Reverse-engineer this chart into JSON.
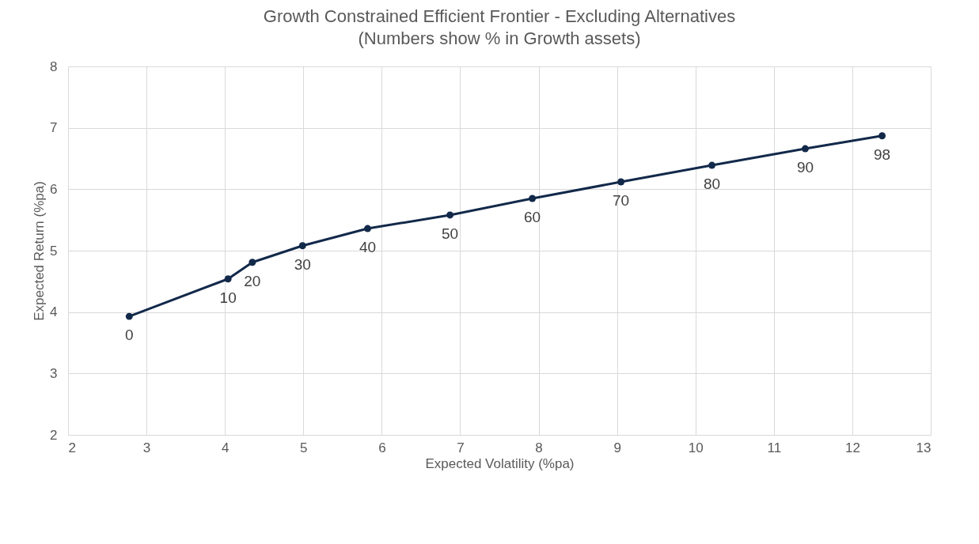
{
  "chart_data": {
    "type": "line",
    "title": "Growth Constrained Efficient Frontier - Excluding Alternatives",
    "subtitle": "(Numbers show % in Growth assets)",
    "xlabel": "Expected Volatility (%pa)",
    "ylabel": "Expected Return (%pa)",
    "x": [
      2.78,
      4.04,
      4.35,
      4.99,
      5.82,
      6.87,
      7.92,
      9.05,
      10.21,
      11.4,
      12.38
    ],
    "values": [
      3.93,
      4.54,
      4.81,
      5.08,
      5.36,
      5.58,
      5.85,
      6.12,
      6.39,
      6.66,
      6.87
    ],
    "color": "#12294a",
    "marker": "circle",
    "line_style": "solid",
    "grid": true,
    "xlim": [
      2,
      13
    ],
    "xticks": [
      2,
      3,
      4,
      5,
      6,
      7,
      8,
      9,
      10,
      11,
      12,
      13
    ],
    "ylim": [
      2,
      8
    ],
    "yticks": [
      2,
      3,
      4,
      5,
      6,
      7,
      8
    ],
    "annotations": [
      {
        "text": "0",
        "x": 2.78,
        "y": 3.93
      },
      {
        "text": "10",
        "x": 4.04,
        "y": 4.54
      },
      {
        "text": "20",
        "x": 4.35,
        "y": 4.81
      },
      {
        "text": "30",
        "x": 4.99,
        "y": 5.08
      },
      {
        "text": "40",
        "x": 5.82,
        "y": 5.36
      },
      {
        "text": "50",
        "x": 6.87,
        "y": 5.58
      },
      {
        "text": "60",
        "x": 7.92,
        "y": 5.85
      },
      {
        "text": "70",
        "x": 9.05,
        "y": 6.12
      },
      {
        "text": "80",
        "x": 10.21,
        "y": 6.39
      },
      {
        "text": "90",
        "x": 11.4,
        "y": 6.66
      },
      {
        "text": "98",
        "x": 12.38,
        "y": 6.87
      }
    ]
  }
}
